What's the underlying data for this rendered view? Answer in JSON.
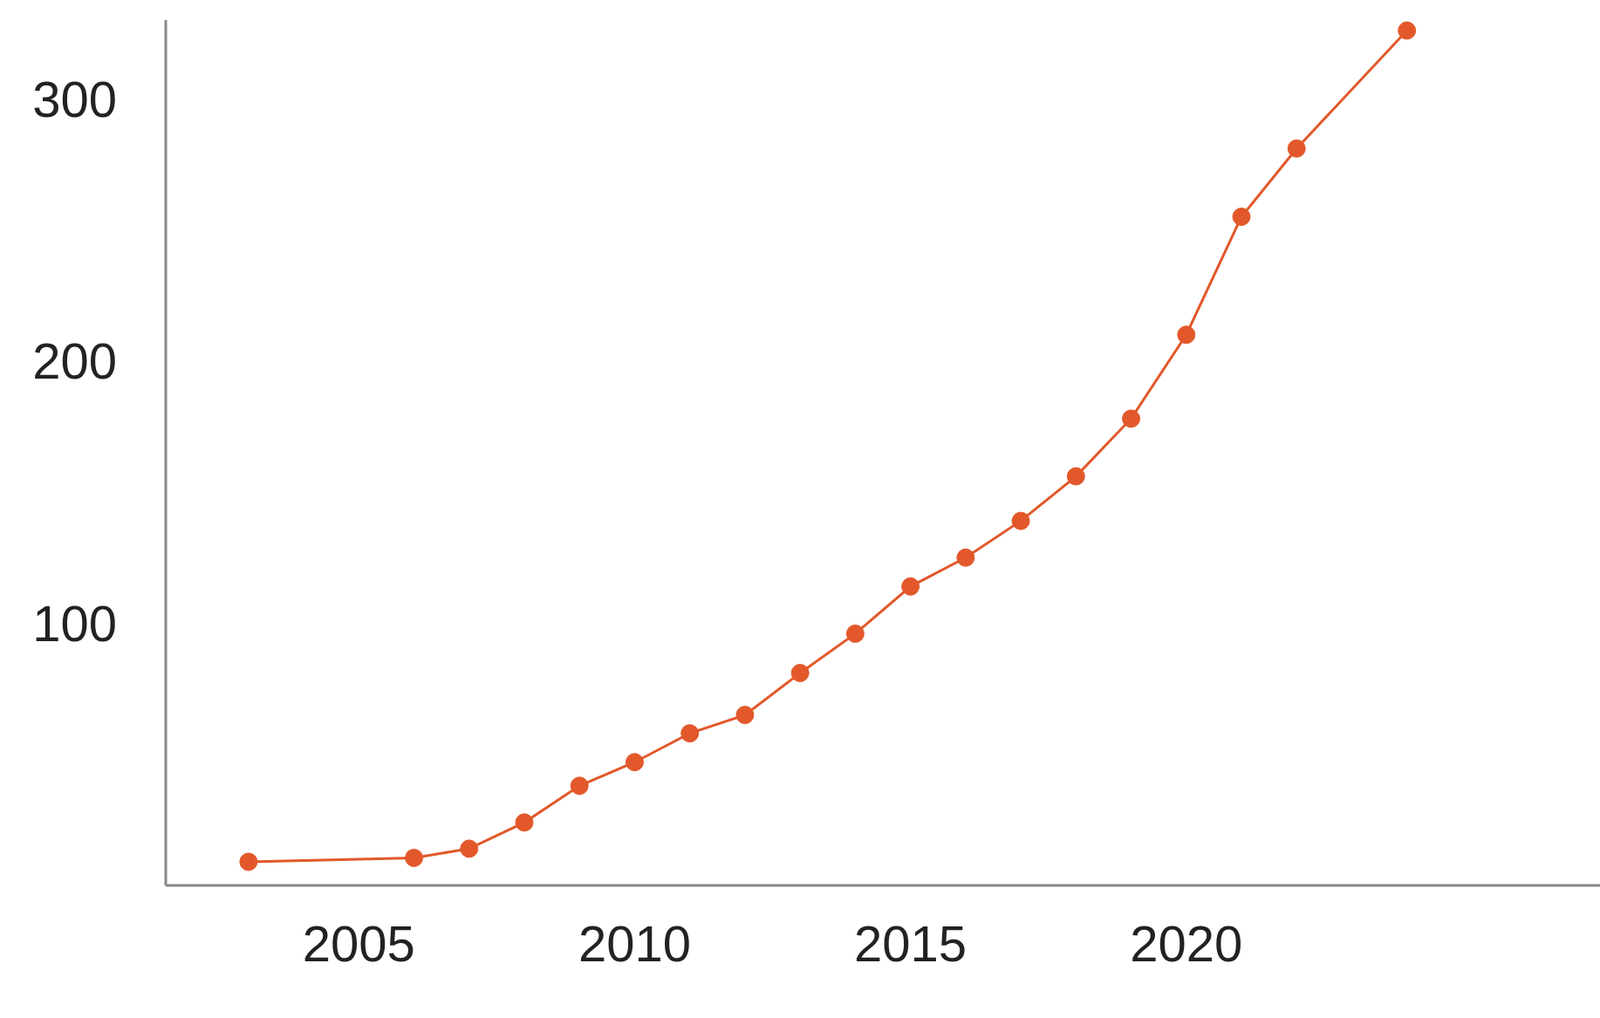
{
  "chart_data": {
    "type": "line",
    "x": [
      2003,
      2006,
      2007,
      2008,
      2009,
      2010,
      2011,
      2012,
      2013,
      2014,
      2015,
      2016,
      2017,
      2018,
      2019,
      2020,
      2021,
      2022,
      2024
    ],
    "values": [
      9,
      10.5,
      14,
      24,
      38,
      47,
      58,
      65,
      81,
      96,
      114,
      125,
      139,
      156,
      178,
      210,
      255,
      281,
      326
    ],
    "color": "#e2582a",
    "marker": "circle",
    "xlim": [
      2001.5,
      2027.5
    ],
    "xticks": [
      2005,
      2010,
      2015,
      2020
    ],
    "ylim": [
      0,
      330
    ],
    "yticks": [
      100,
      200,
      300
    ],
    "grid": false
  }
}
